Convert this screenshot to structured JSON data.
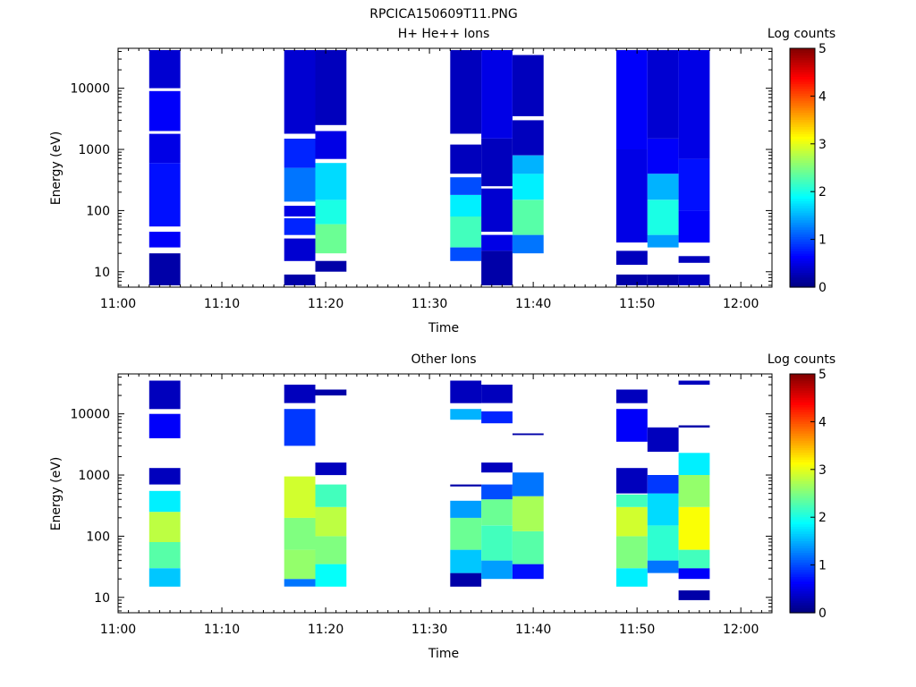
{
  "figure": {
    "title": "RPCICA150609T11.PNG"
  },
  "chart_data": [
    {
      "type": "heatmap",
      "title": "H+ He++ Ions",
      "xlabel": "Time",
      "ylabel": "Energy (eV)",
      "x_ticks": [
        "11:00",
        "11:10",
        "11:20",
        "11:30",
        "11:40",
        "11:50",
        "12:00"
      ],
      "y_ticks": [
        "10",
        "100",
        "1000",
        "10000"
      ],
      "y_scale": "log",
      "colorbar": {
        "label": "Log counts",
        "ticks": [
          "0",
          "1",
          "2",
          "3",
          "4",
          "5"
        ],
        "range": [
          0,
          5
        ]
      },
      "columns": [
        {
          "start": "11:03",
          "end": "11:06",
          "bands": [
            {
              "e1": 6,
              "e2": 20,
              "v": 0.2
            },
            {
              "e1": 25,
              "e2": 45,
              "v": 0.6
            },
            {
              "e1": 55,
              "e2": 600,
              "v": 0.7
            },
            {
              "e1": 600,
              "e2": 1800,
              "v": 0.5
            },
            {
              "e1": 2000,
              "e2": 9000,
              "v": 0.6
            },
            {
              "e1": 10000,
              "e2": 42000,
              "v": 0.4
            }
          ]
        },
        {
          "start": "11:16",
          "end": "11:19",
          "bands": [
            {
              "e1": 6,
              "e2": 9,
              "v": 0.2
            },
            {
              "e1": 15,
              "e2": 35,
              "v": 0.4
            },
            {
              "e1": 40,
              "e2": 75,
              "v": 0.8
            },
            {
              "e1": 80,
              "e2": 120,
              "v": 0.5
            },
            {
              "e1": 140,
              "e2": 500,
              "v": 1.2
            },
            {
              "e1": 500,
              "e2": 1500,
              "v": 0.8
            },
            {
              "e1": 1800,
              "e2": 42000,
              "v": 0.4
            }
          ]
        },
        {
          "start": "11:19",
          "end": "11:22",
          "bands": [
            {
              "e1": 10,
              "e2": 15,
              "v": 0.2
            },
            {
              "e1": 20,
              "e2": 60,
              "v": 2.4
            },
            {
              "e1": 60,
              "e2": 150,
              "v": 2.0
            },
            {
              "e1": 150,
              "e2": 600,
              "v": 1.7
            },
            {
              "e1": 700,
              "e2": 2000,
              "v": 0.5
            },
            {
              "e1": 2500,
              "e2": 42000,
              "v": 0.3
            }
          ]
        },
        {
          "start": "11:32",
          "end": "11:35",
          "bands": [
            {
              "e1": 15,
              "e2": 25,
              "v": 1.0
            },
            {
              "e1": 25,
              "e2": 80,
              "v": 2.2
            },
            {
              "e1": 80,
              "e2": 180,
              "v": 1.8
            },
            {
              "e1": 180,
              "e2": 350,
              "v": 1.0
            },
            {
              "e1": 400,
              "e2": 1200,
              "v": 0.3
            },
            {
              "e1": 1800,
              "e2": 42000,
              "v": 0.3
            }
          ]
        },
        {
          "start": "11:35",
          "end": "11:38",
          "bands": [
            {
              "e1": 6,
              "e2": 22,
              "v": 0.2
            },
            {
              "e1": 22,
              "e2": 40,
              "v": 0.5
            },
            {
              "e1": 45,
              "e2": 230,
              "v": 0.4
            },
            {
              "e1": 250,
              "e2": 1500,
              "v": 0.3
            },
            {
              "e1": 1500,
              "e2": 42000,
              "v": 0.5
            }
          ]
        },
        {
          "start": "11:38",
          "end": "11:41",
          "bands": [
            {
              "e1": 20,
              "e2": 40,
              "v": 1.2
            },
            {
              "e1": 40,
              "e2": 150,
              "v": 2.3
            },
            {
              "e1": 150,
              "e2": 400,
              "v": 1.8
            },
            {
              "e1": 400,
              "e2": 800,
              "v": 1.5
            },
            {
              "e1": 800,
              "e2": 3000,
              "v": 0.3
            },
            {
              "e1": 3500,
              "e2": 35000,
              "v": 0.3
            }
          ]
        },
        {
          "start": "11:48",
          "end": "11:51",
          "bands": [
            {
              "e1": 6,
              "e2": 9,
              "v": 0.2
            },
            {
              "e1": 13,
              "e2": 22,
              "v": 0.3
            },
            {
              "e1": 30,
              "e2": 1000,
              "v": 0.5
            },
            {
              "e1": 1000,
              "e2": 42000,
              "v": 0.6
            }
          ]
        },
        {
          "start": "11:51",
          "end": "11:54",
          "bands": [
            {
              "e1": 6,
              "e2": 9,
              "v": 0.2
            },
            {
              "e1": 25,
              "e2": 40,
              "v": 1.4
            },
            {
              "e1": 40,
              "e2": 150,
              "v": 2.0
            },
            {
              "e1": 150,
              "e2": 400,
              "v": 1.5
            },
            {
              "e1": 400,
              "e2": 1500,
              "v": 0.6
            },
            {
              "e1": 1500,
              "e2": 42000,
              "v": 0.4
            }
          ]
        },
        {
          "start": "11:54",
          "end": "11:57",
          "bands": [
            {
              "e1": 6,
              "e2": 9,
              "v": 0.3
            },
            {
              "e1": 14,
              "e2": 18,
              "v": 0.3
            },
            {
              "e1": 30,
              "e2": 100,
              "v": 0.6
            },
            {
              "e1": 100,
              "e2": 700,
              "v": 0.7
            },
            {
              "e1": 700,
              "e2": 42000,
              "v": 0.5
            }
          ]
        }
      ]
    },
    {
      "type": "heatmap",
      "title": "Other Ions",
      "xlabel": "Time",
      "ylabel": "Energy (eV)",
      "x_ticks": [
        "11:00",
        "11:10",
        "11:20",
        "11:30",
        "11:40",
        "11:50",
        "12:00"
      ],
      "y_ticks": [
        "10",
        "100",
        "1000",
        "10000"
      ],
      "y_scale": "log",
      "colorbar": {
        "label": "Log counts",
        "ticks": [
          "0",
          "1",
          "2",
          "3",
          "4",
          "5"
        ],
        "range": [
          0,
          5
        ]
      },
      "columns": [
        {
          "start": "11:03",
          "end": "11:06",
          "bands": [
            {
              "e1": 15,
              "e2": 30,
              "v": 1.6
            },
            {
              "e1": 30,
              "e2": 80,
              "v": 2.3
            },
            {
              "e1": 80,
              "e2": 250,
              "v": 2.8
            },
            {
              "e1": 250,
              "e2": 550,
              "v": 1.8
            },
            {
              "e1": 700,
              "e2": 1300,
              "v": 0.3
            },
            {
              "e1": 4000,
              "e2": 10000,
              "v": 0.6
            },
            {
              "e1": 12000,
              "e2": 35000,
              "v": 0.3
            }
          ]
        },
        {
          "start": "11:16",
          "end": "11:19",
          "bands": [
            {
              "e1": 15,
              "e2": 20,
              "v": 1.2
            },
            {
              "e1": 20,
              "e2": 60,
              "v": 2.6
            },
            {
              "e1": 60,
              "e2": 200,
              "v": 2.5
            },
            {
              "e1": 200,
              "e2": 950,
              "v": 2.9
            },
            {
              "e1": 3000,
              "e2": 12000,
              "v": 0.9
            },
            {
              "e1": 15000,
              "e2": 30000,
              "v": 0.3
            }
          ]
        },
        {
          "start": "11:19",
          "end": "11:22",
          "bands": [
            {
              "e1": 15,
              "e2": 35,
              "v": 1.9
            },
            {
              "e1": 35,
              "e2": 100,
              "v": 2.5
            },
            {
              "e1": 100,
              "e2": 300,
              "v": 2.8
            },
            {
              "e1": 300,
              "e2": 700,
              "v": 2.2
            },
            {
              "e1": 1000,
              "e2": 1600,
              "v": 0.3
            },
            {
              "e1": 20000,
              "e2": 25000,
              "v": 0.2
            }
          ]
        },
        {
          "start": "11:32",
          "end": "11:35",
          "bands": [
            {
              "e1": 15,
              "e2": 25,
              "v": 0.2
            },
            {
              "e1": 25,
              "e2": 60,
              "v": 1.6
            },
            {
              "e1": 60,
              "e2": 200,
              "v": 2.4
            },
            {
              "e1": 200,
              "e2": 380,
              "v": 1.4
            },
            {
              "e1": 650,
              "e2": 700,
              "v": 0.2
            },
            {
              "e1": 8000,
              "e2": 12000,
              "v": 1.5
            },
            {
              "e1": 15000,
              "e2": 35000,
              "v": 0.3
            }
          ]
        },
        {
          "start": "11:35",
          "end": "11:38",
          "bands": [
            {
              "e1": 20,
              "e2": 40,
              "v": 1.4
            },
            {
              "e1": 40,
              "e2": 150,
              "v": 2.2
            },
            {
              "e1": 150,
              "e2": 400,
              "v": 2.4
            },
            {
              "e1": 400,
              "e2": 700,
              "v": 1.0
            },
            {
              "e1": 1100,
              "e2": 1600,
              "v": 0.3
            },
            {
              "e1": 7000,
              "e2": 11000,
              "v": 0.8
            },
            {
              "e1": 15000,
              "e2": 30000,
              "v": 0.3
            }
          ]
        },
        {
          "start": "11:38",
          "end": "11:41",
          "bands": [
            {
              "e1": 20,
              "e2": 35,
              "v": 0.7
            },
            {
              "e1": 35,
              "e2": 120,
              "v": 2.3
            },
            {
              "e1": 120,
              "e2": 450,
              "v": 2.7
            },
            {
              "e1": 450,
              "e2": 1100,
              "v": 1.2
            },
            {
              "e1": 4500,
              "e2": 4800,
              "v": 0.2
            }
          ]
        },
        {
          "start": "11:48",
          "end": "11:51",
          "bands": [
            {
              "e1": 15,
              "e2": 30,
              "v": 1.8
            },
            {
              "e1": 30,
              "e2": 100,
              "v": 2.5
            },
            {
              "e1": 100,
              "e2": 300,
              "v": 2.9
            },
            {
              "e1": 300,
              "e2": 480,
              "v": 2.2
            },
            {
              "e1": 500,
              "e2": 1300,
              "v": 0.3
            },
            {
              "e1": 3500,
              "e2": 12000,
              "v": 0.6
            },
            {
              "e1": 15000,
              "e2": 25000,
              "v": 0.3
            }
          ]
        },
        {
          "start": "11:51",
          "end": "11:54",
          "bands": [
            {
              "e1": 25,
              "e2": 40,
              "v": 1.2
            },
            {
              "e1": 40,
              "e2": 150,
              "v": 2.1
            },
            {
              "e1": 150,
              "e2": 500,
              "v": 1.7
            },
            {
              "e1": 500,
              "e2": 1000,
              "v": 0.9
            },
            {
              "e1": 2400,
              "e2": 6000,
              "v": 0.3
            }
          ]
        },
        {
          "start": "11:54",
          "end": "11:57",
          "bands": [
            {
              "e1": 9,
              "e2": 13,
              "v": 0.2
            },
            {
              "e1": 20,
              "e2": 30,
              "v": 0.6
            },
            {
              "e1": 30,
              "e2": 60,
              "v": 2.2
            },
            {
              "e1": 60,
              "e2": 300,
              "v": 3.1
            },
            {
              "e1": 300,
              "e2": 1000,
              "v": 2.6
            },
            {
              "e1": 1000,
              "e2": 2300,
              "v": 1.8
            },
            {
              "e1": 6000,
              "e2": 6500,
              "v": 0.2
            },
            {
              "e1": 30000,
              "e2": 35000,
              "v": 0.3
            }
          ]
        }
      ]
    }
  ]
}
